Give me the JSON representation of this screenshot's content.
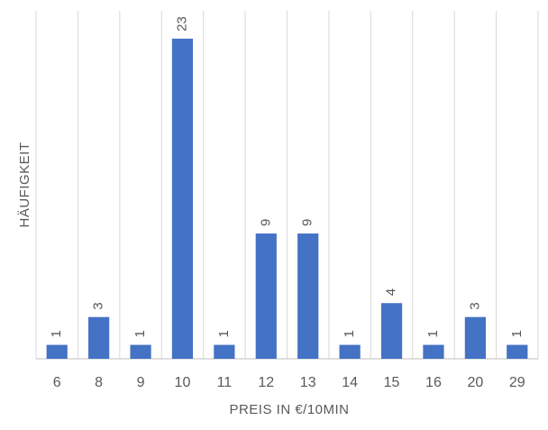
{
  "chart_data": {
    "type": "bar",
    "x_label": "PREIS IN €/10MIN",
    "y_label": "HÄUFIGKEIT",
    "categories": [
      "6",
      "8",
      "9",
      "10",
      "11",
      "12",
      "13",
      "14",
      "15",
      "16",
      "20",
      "29"
    ],
    "values": [
      1,
      3,
      1,
      23,
      1,
      9,
      9,
      1,
      4,
      1,
      3,
      1
    ],
    "color": "#4472c4",
    "ylim": [
      0,
      25
    ],
    "grid": true
  }
}
